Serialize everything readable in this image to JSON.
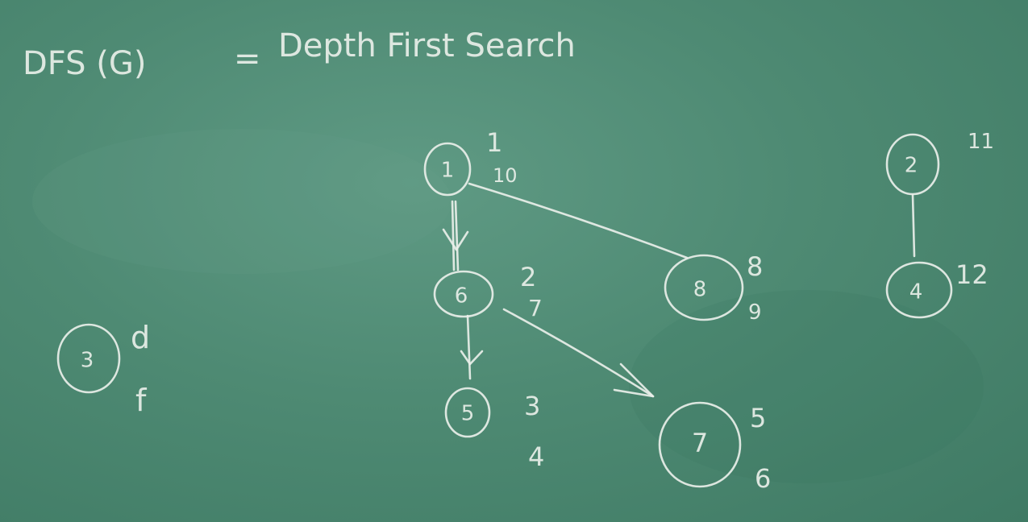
{
  "heading": {
    "left": "DFS (G)",
    "equals": "=",
    "right": "Depth First Search"
  },
  "nodes": {
    "n1": {
      "label": "1",
      "times": [
        "1",
        "10"
      ]
    },
    "n6": {
      "label": "6",
      "times": [
        "2",
        "7"
      ]
    },
    "n8": {
      "label": "8",
      "times": [
        "8",
        "9"
      ]
    },
    "n5": {
      "label": "5",
      "times": [
        "3",
        "4"
      ]
    },
    "n7": {
      "label": "7",
      "times": [
        "5",
        "6"
      ]
    },
    "n2": {
      "label": "2",
      "times": [
        "11"
      ]
    },
    "n4": {
      "label": "4",
      "times": [
        "12"
      ]
    },
    "n3": {
      "label": "3",
      "times": []
    }
  },
  "side_notes": [
    "d",
    "f"
  ],
  "edges": [
    {
      "from": "1",
      "to": "6",
      "directed": true
    },
    {
      "from": "1",
      "to": "8",
      "directed": false
    },
    {
      "from": "6",
      "to": "5",
      "directed": true
    },
    {
      "from": "6",
      "to": "7",
      "directed": true
    },
    {
      "from": "2",
      "to": "4",
      "directed": false
    }
  ]
}
